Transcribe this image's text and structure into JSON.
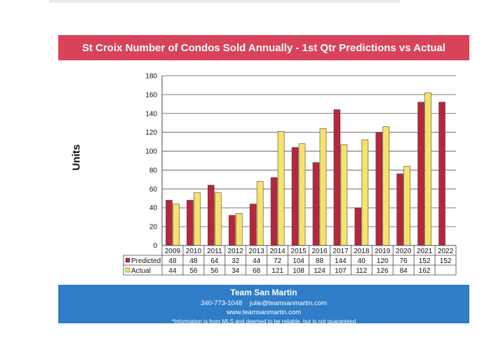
{
  "title": "St Croix Number of Condos Sold  Annually - 1st Qtr Predictions vs Actual",
  "colors": {
    "title_banner": "#d9435a",
    "footer_banner": "#2f7dc7",
    "predicted": "#b8263d",
    "actual": "#f7e36a"
  },
  "chart_data": {
    "type": "bar",
    "title": "St Croix Number of Condos Sold  Annually - 1st Qtr Predictions vs Actual",
    "ylabel": "Units",
    "xlabel": "",
    "ylim": [
      0,
      180
    ],
    "yticks": [
      0,
      20,
      40,
      60,
      80,
      100,
      120,
      140,
      160,
      180
    ],
    "grid": true,
    "legend": "data-table",
    "categories": [
      "2009",
      "2010",
      "2011",
      "2012",
      "2013",
      "2014",
      "2015",
      "2016",
      "2017",
      "2018",
      "2019",
      "2020",
      "2021",
      "2022"
    ],
    "series": [
      {
        "name": "Predicted",
        "values": [
          48,
          48,
          64,
          32,
          44,
          72,
          104,
          88,
          144,
          40,
          120,
          76,
          152,
          152
        ]
      },
      {
        "name": "Actual",
        "values": [
          44,
          56,
          56,
          34,
          68,
          121,
          108,
          124,
          107,
          112,
          126,
          84,
          162,
          null
        ]
      }
    ]
  },
  "footer": {
    "team": "Team San Martin",
    "phone": "340-773-1048",
    "email": "julie@teamsanmartin.com",
    "website": "www.teamsanmartin.com",
    "disclaimer": "*Information is from MLS and deemed to be reliable, but is not guaranteed"
  }
}
